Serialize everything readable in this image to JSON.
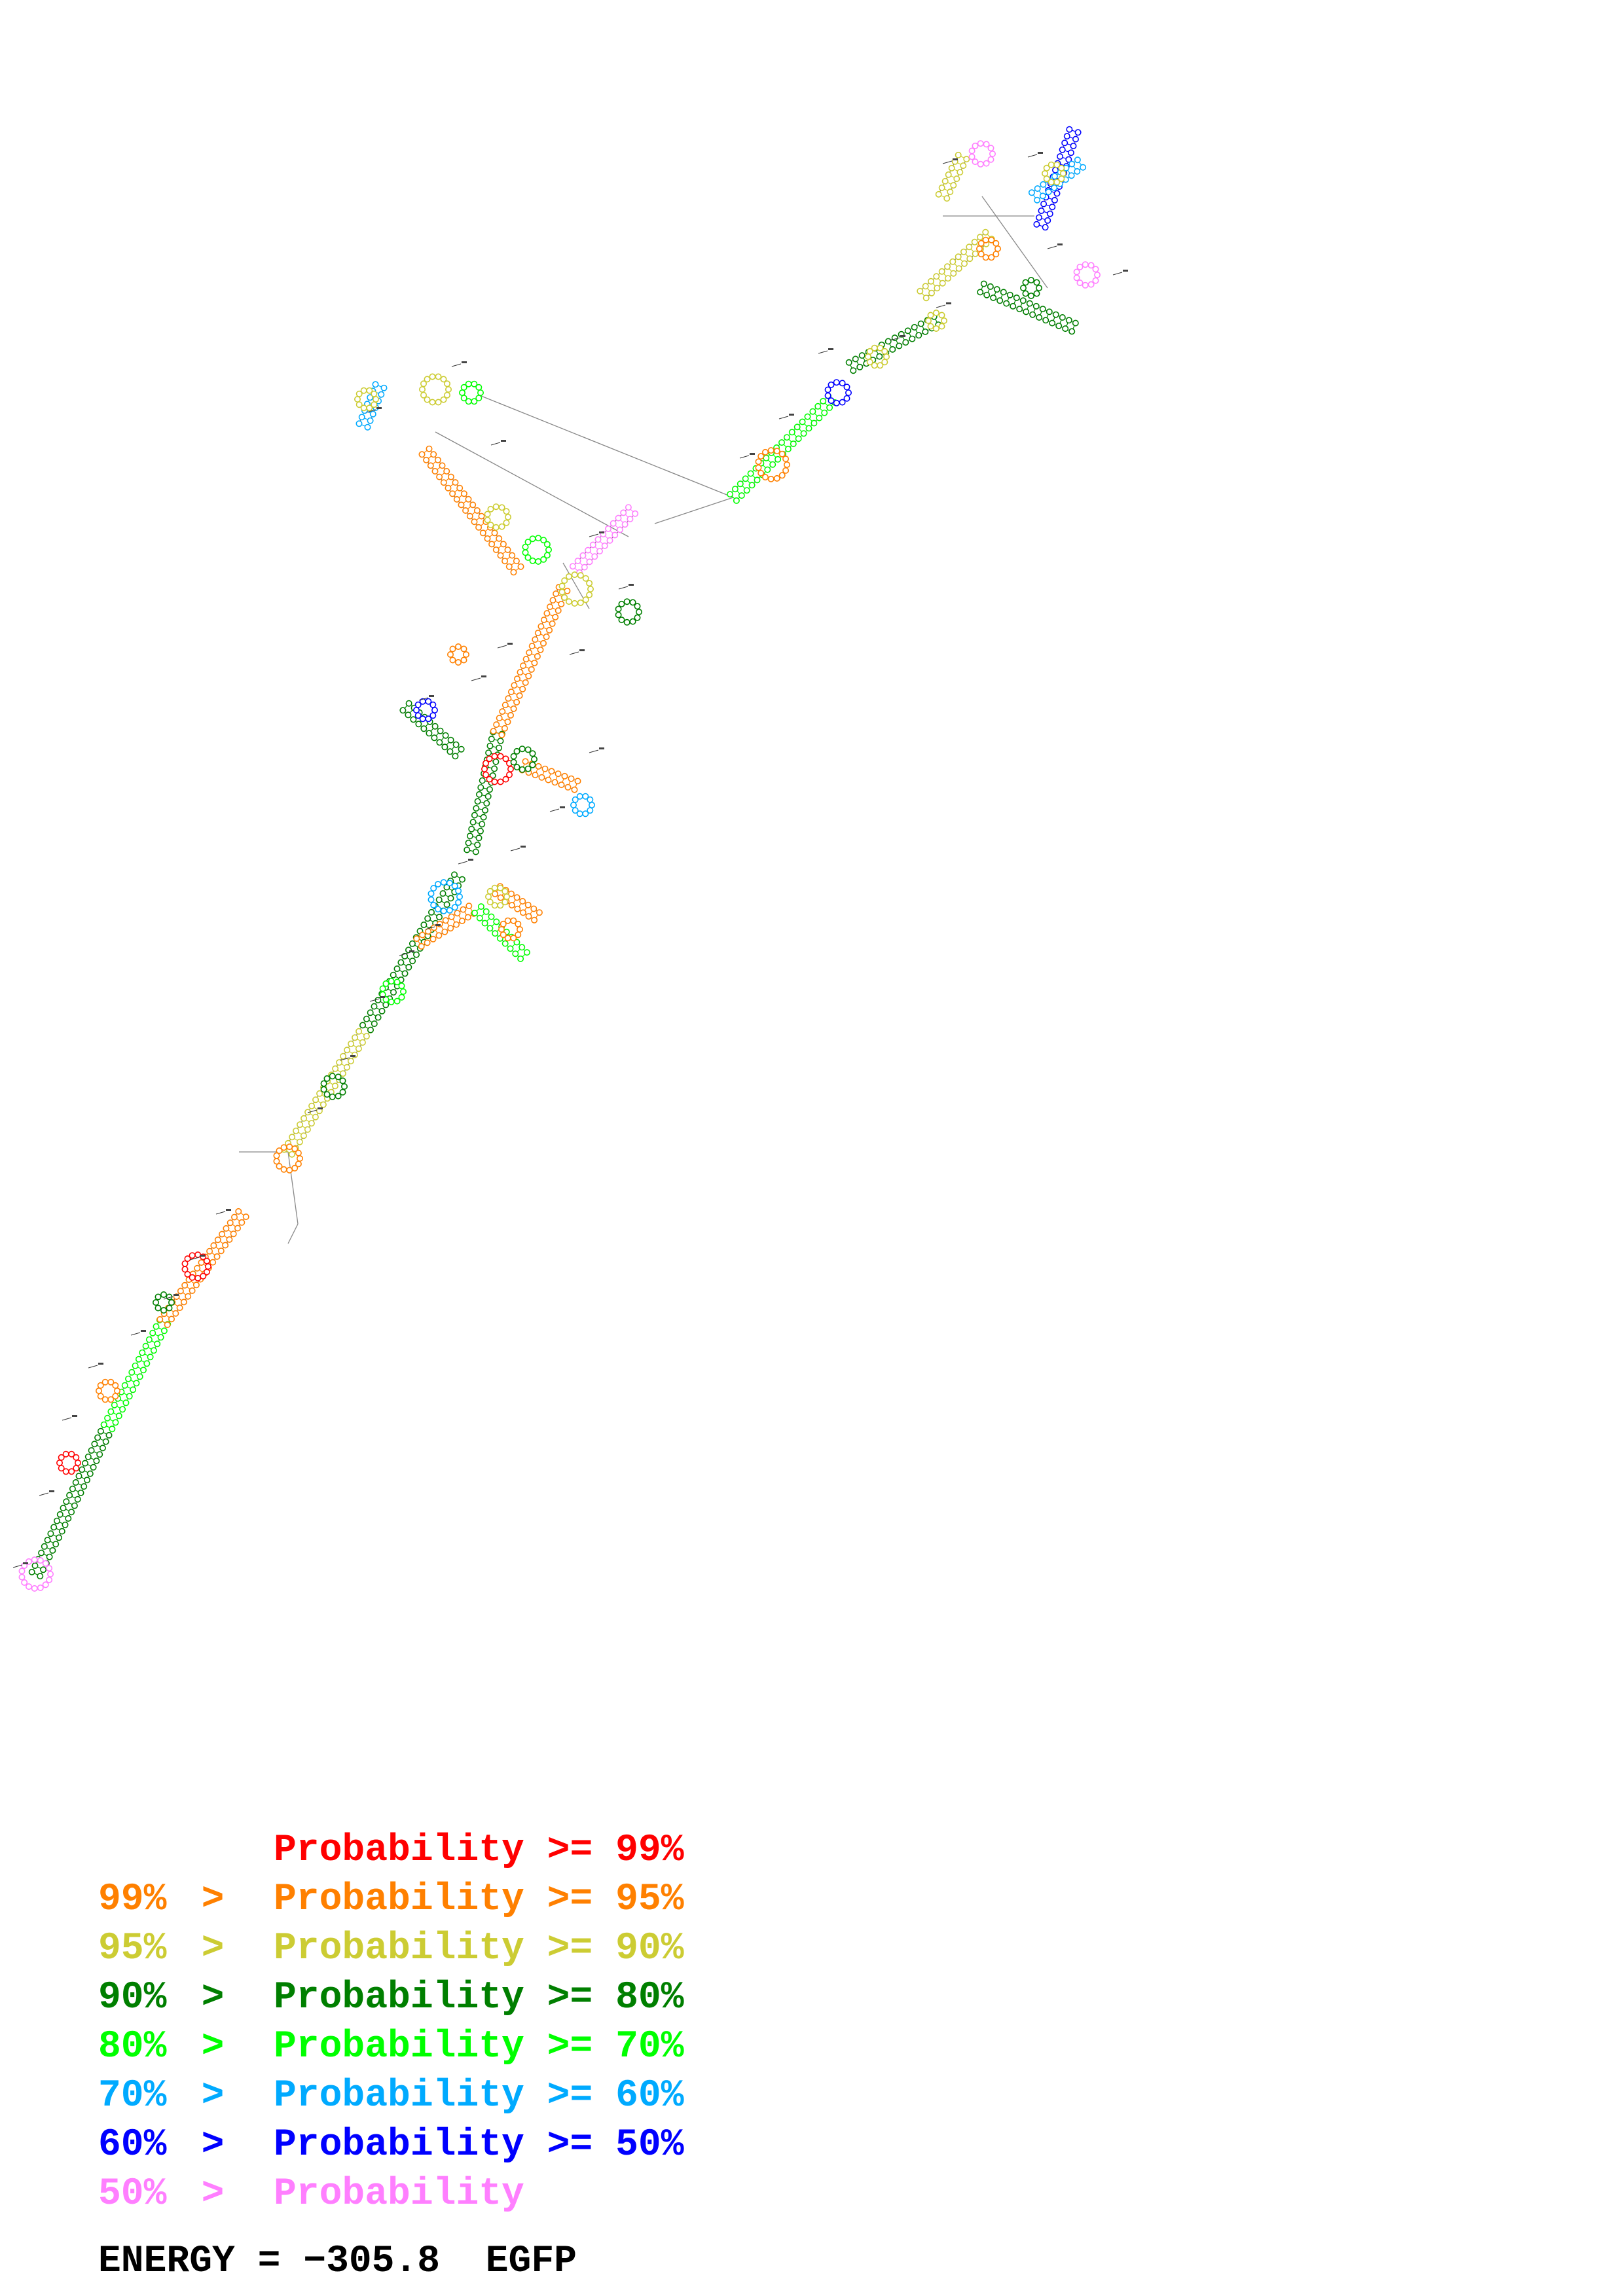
{
  "legend": {
    "rows": [
      {
        "left": "",
        "sep": "",
        "right": "Probability >= 99%",
        "color": "#ff0000"
      },
      {
        "left": "99%",
        "sep": ">",
        "right": "Probability >= 95%",
        "color": "#ff8000"
      },
      {
        "left": "95%",
        "sep": ">",
        "right": "Probability >= 90%",
        "color": "#cccc33"
      },
      {
        "left": "90%",
        "sep": ">",
        "right": "Probability >= 80%",
        "color": "#007f00"
      },
      {
        "left": "80%",
        "sep": ">",
        "right": "Probability >= 70%",
        "color": "#00ff00"
      },
      {
        "left": "70%",
        "sep": ">",
        "right": "Probability >= 60%",
        "color": "#00aaff"
      },
      {
        "left": "60%",
        "sep": ">",
        "right": "Probability >= 50%",
        "color": "#0000ff"
      },
      {
        "left": "50%",
        "sep": ">",
        "right": "Probability",
        "color": "#ff7fff"
      }
    ]
  },
  "footer": {
    "energy_label": "ENERGY =",
    "energy_value": "−305.8",
    "sequence_name": "EGFP"
  },
  "diagram": {
    "line_color": "#666666",
    "pair_colors": [
      "#ff0000",
      "#ff8000",
      "#cccc33",
      "#007f00",
      "#00ff00",
      "#00aaff",
      "#0000ff",
      "#ff7fff"
    ]
  }
}
